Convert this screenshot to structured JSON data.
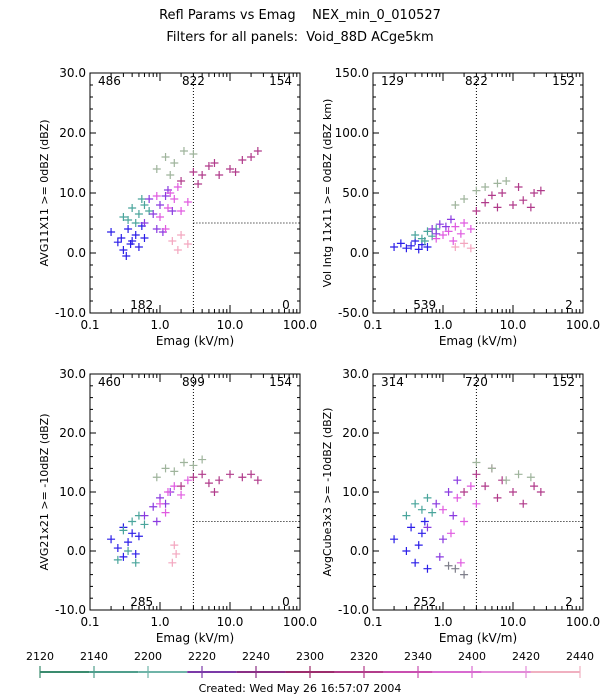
{
  "header": {
    "line1": "Refl Params vs Emag    NEX_min_0_010527",
    "line2": "Filters for all panels:  Void_88D ACge5km"
  },
  "footer": {
    "created": "Created: Wed May 26 16:57:07 2004"
  },
  "colorbar": {
    "labels": [
      "2120",
      "2140",
      "2200",
      "2220",
      "2240",
      "2300",
      "2320",
      "2340",
      "2400",
      "2420",
      "2440"
    ],
    "colors": [
      "#3a8b6e",
      "#4f9e8c",
      "#6fb4a8",
      "#7b3aa8",
      "#8a2f86",
      "#9c2c6c",
      "#b23c8a",
      "#c94fb0",
      "#d86ad0",
      "#e38bd8",
      "#f0b0c0"
    ]
  },
  "colors": {
    "blue": "#2b1ee8",
    "teal": "#4aa59c",
    "violet": "#8a3ae0",
    "purple": "#9b2c92",
    "magenta": "#e05ae0",
    "plum": "#b03a8a",
    "sage": "#9fb49c",
    "pink": "#f3a6bf",
    "gray": "#7e7e8a"
  },
  "chart_data": [
    {
      "type": "scatter",
      "xlabel": "Emag (kV/m)",
      "ylabel": "AVG11X11 >= 0dBZ (dBZ)",
      "xscale": "log",
      "xlim": [
        0.1,
        100.0
      ],
      "ylim": [
        -10.0,
        30.0
      ],
      "xticks": [
        "0.1",
        "1.0",
        "10.0",
        "100.0"
      ],
      "yticks": [
        "-10.0",
        "0.0",
        "10.0",
        "20.0",
        "30.0"
      ],
      "quadrant_x": 3.0,
      "quadrant_y": 5.0,
      "counts": {
        "top_left": "486",
        "top_mid": "822",
        "top_right": "154",
        "bottom_left": "182",
        "bottom_right": "0"
      },
      "series": [
        {
          "color": "blue",
          "points": [
            [
              0.2,
              3.5
            ],
            [
              0.25,
              1.8
            ],
            [
              0.3,
              0.5
            ],
            [
              0.28,
              2.5
            ],
            [
              0.35,
              4.0
            ],
            [
              0.4,
              2.0
            ],
            [
              0.45,
              3.0
            ],
            [
              0.5,
              1.0
            ],
            [
              0.33,
              -0.5
            ],
            [
              0.6,
              2.5
            ],
            [
              0.55,
              4.5
            ],
            [
              0.38,
              1.5
            ]
          ]
        },
        {
          "color": "teal",
          "points": [
            [
              0.3,
              6.0
            ],
            [
              0.4,
              7.5
            ],
            [
              0.5,
              6.5
            ],
            [
              0.6,
              8.0
            ],
            [
              0.45,
              5.0
            ],
            [
              0.7,
              7.0
            ],
            [
              0.35,
              5.5
            ],
            [
              0.55,
              9.0
            ]
          ]
        },
        {
          "color": "violet",
          "points": [
            [
              0.6,
              5.0
            ],
            [
              0.8,
              6.5
            ],
            [
              1.0,
              8.0
            ],
            [
              1.2,
              9.5
            ],
            [
              0.9,
              4.0
            ],
            [
              1.5,
              7.0
            ],
            [
              1.1,
              3.5
            ],
            [
              0.7,
              9.0
            ],
            [
              1.3,
              10.5
            ]
          ]
        },
        {
          "color": "magenta",
          "points": [
            [
              1.0,
              6.0
            ],
            [
              1.3,
              7.5
            ],
            [
              1.6,
              9.0
            ],
            [
              2.0,
              7.0
            ],
            [
              0.9,
              9.5
            ],
            [
              1.8,
              11.0
            ],
            [
              1.2,
              4.0
            ],
            [
              2.5,
              8.5
            ],
            [
              1.4,
              10.0
            ]
          ]
        },
        {
          "color": "plum",
          "points": [
            [
              2.0,
              12.0
            ],
            [
              3.0,
              13.5
            ],
            [
              4.0,
              13.0
            ],
            [
              5.0,
              14.5
            ],
            [
              7.0,
              13.0
            ],
            [
              10.0,
              14.0
            ],
            [
              15.0,
              15.5
            ],
            [
              20.0,
              16.0
            ],
            [
              3.5,
              11.5
            ],
            [
              6.0,
              15.0
            ],
            [
              12.0,
              13.5
            ],
            [
              25.0,
              17.0
            ]
          ]
        },
        {
          "color": "sage",
          "points": [
            [
              0.9,
              14.0
            ],
            [
              1.2,
              16.0
            ],
            [
              1.6,
              15.0
            ],
            [
              2.2,
              17.0
            ],
            [
              3.0,
              16.5
            ],
            [
              1.4,
              13.0
            ]
          ]
        },
        {
          "color": "pink",
          "points": [
            [
              1.5,
              2.0
            ],
            [
              2.0,
              3.0
            ],
            [
              1.8,
              0.5
            ],
            [
              2.5,
              1.5
            ]
          ]
        }
      ]
    },
    {
      "type": "scatter",
      "xlabel": "Emag (kV/m)",
      "ylabel": "Vol Intg 11x11 >= 0dBZ (dBZ km)",
      "xscale": "log",
      "xlim": [
        0.1,
        100.0
      ],
      "ylim": [
        -50.0,
        150.0
      ],
      "xticks": [
        "0.1",
        "1.0",
        "10.0",
        "100.0"
      ],
      "yticks": [
        "-50.0",
        "0.0",
        "50.0",
        "100.0",
        "150.0"
      ],
      "quadrant_x": 3.0,
      "quadrant_y": 25.0,
      "counts": {
        "top_left": "129",
        "top_mid": "822",
        "top_right": "152",
        "bottom_left": "539",
        "bottom_right": "2"
      },
      "series": [
        {
          "color": "blue",
          "points": [
            [
              0.2,
              5.0
            ],
            [
              0.25,
              8.0
            ],
            [
              0.3,
              4.0
            ],
            [
              0.35,
              6.0
            ],
            [
              0.4,
              10.0
            ],
            [
              0.45,
              3.0
            ],
            [
              0.5,
              7.0
            ],
            [
              0.6,
              5.0
            ]
          ]
        },
        {
          "color": "teal",
          "points": [
            [
              0.4,
              15.0
            ],
            [
              0.5,
              12.0
            ],
            [
              0.6,
              18.0
            ],
            [
              0.7,
              14.0
            ],
            [
              0.8,
              20.0
            ],
            [
              0.55,
              10.0
            ]
          ]
        },
        {
          "color": "violet",
          "points": [
            [
              0.7,
              20.0
            ],
            [
              0.9,
              24.0
            ],
            [
              1.1,
              22.0
            ],
            [
              1.3,
              28.0
            ],
            [
              0.8,
              16.0
            ]
          ]
        },
        {
          "color": "magenta",
          "points": [
            [
              0.8,
              12.0
            ],
            [
              1.0,
              15.0
            ],
            [
              1.2,
              18.0
            ],
            [
              1.5,
              22.0
            ],
            [
              1.8,
              16.0
            ],
            [
              2.0,
              25.0
            ],
            [
              1.4,
              10.0
            ],
            [
              2.5,
              20.0
            ]
          ]
        },
        {
          "color": "plum",
          "points": [
            [
              3.0,
              35.0
            ],
            [
              4.0,
              42.0
            ],
            [
              5.0,
              48.0
            ],
            [
              7.0,
              50.0
            ],
            [
              10.0,
              40.0
            ],
            [
              14.0,
              44.0
            ],
            [
              20.0,
              50.0
            ],
            [
              25.0,
              52.0
            ],
            [
              6.0,
              38.0
            ],
            [
              12.0,
              55.0
            ],
            [
              18.0,
              38.0
            ]
          ]
        },
        {
          "color": "sage",
          "points": [
            [
              2.0,
              45.0
            ],
            [
              3.0,
              52.0
            ],
            [
              4.0,
              55.0
            ],
            [
              6.0,
              58.0
            ],
            [
              8.0,
              60.0
            ],
            [
              1.5,
              40.0
            ]
          ]
        },
        {
          "color": "pink",
          "points": [
            [
              1.5,
              5.0
            ],
            [
              2.0,
              8.0
            ],
            [
              2.5,
              4.0
            ]
          ]
        }
      ]
    },
    {
      "type": "scatter",
      "xlabel": "Emag (kV/m)",
      "ylabel": "AVG21x21 >= -10dBZ (dBZ)",
      "xscale": "log",
      "xlim": [
        0.1,
        100.0
      ],
      "ylim": [
        -10.0,
        30.0
      ],
      "xticks": [
        "0.1",
        "1.0",
        "10.0",
        "100.0"
      ],
      "yticks": [
        "-10.0",
        "0.0",
        "10.0",
        "20.0",
        "30.0"
      ],
      "quadrant_x": 3.0,
      "quadrant_y": 5.0,
      "counts": {
        "top_left": "460",
        "top_mid": "899",
        "top_right": "154",
        "bottom_left": "285",
        "bottom_right": "0"
      },
      "series": [
        {
          "color": "blue",
          "points": [
            [
              0.2,
              2.0
            ],
            [
              0.25,
              0.5
            ],
            [
              0.3,
              -1.0
            ],
            [
              0.35,
              1.5
            ],
            [
              0.4,
              3.0
            ],
            [
              0.45,
              -0.5
            ],
            [
              0.5,
              2.5
            ],
            [
              0.3,
              4.0
            ]
          ]
        },
        {
          "color": "teal",
          "points": [
            [
              0.25,
              -1.5
            ],
            [
              0.3,
              3.5
            ],
            [
              0.35,
              0.0
            ],
            [
              0.4,
              5.0
            ],
            [
              0.5,
              6.0
            ],
            [
              0.6,
              4.5
            ],
            [
              0.45,
              -2.0
            ]
          ]
        },
        {
          "color": "violet",
          "points": [
            [
              0.6,
              6.0
            ],
            [
              0.8,
              7.5
            ],
            [
              1.0,
              9.0
            ],
            [
              1.2,
              8.0
            ],
            [
              0.9,
              5.0
            ],
            [
              1.4,
              10.0
            ]
          ]
        },
        {
          "color": "magenta",
          "points": [
            [
              1.0,
              8.0
            ],
            [
              1.3,
              10.0
            ],
            [
              1.6,
              11.0
            ],
            [
              2.0,
              9.5
            ],
            [
              2.5,
              12.0
            ],
            [
              1.2,
              6.5
            ]
          ]
        },
        {
          "color": "plum",
          "points": [
            [
              2.0,
              11.0
            ],
            [
              3.0,
              12.5
            ],
            [
              4.0,
              13.0
            ],
            [
              5.0,
              11.5
            ],
            [
              7.0,
              12.0
            ],
            [
              10.0,
              13.0
            ],
            [
              15.0,
              12.5
            ],
            [
              20.0,
              13.0
            ],
            [
              25.0,
              12.0
            ],
            [
              6.0,
              10.0
            ]
          ]
        },
        {
          "color": "sage",
          "points": [
            [
              0.9,
              12.5
            ],
            [
              1.2,
              14.0
            ],
            [
              1.6,
              13.5
            ],
            [
              2.2,
              15.0
            ],
            [
              3.0,
              14.5
            ],
            [
              4.0,
              15.5
            ]
          ]
        },
        {
          "color": "pink",
          "points": [
            [
              1.5,
              -2.0
            ],
            [
              1.7,
              -0.5
            ],
            [
              1.6,
              1.0
            ]
          ]
        }
      ]
    },
    {
      "type": "scatter",
      "xlabel": "Emag (kV/m)",
      "ylabel": "AvgCube3x3 >= -10dBZ (dBZ)",
      "xscale": "log",
      "xlim": [
        0.1,
        100.0
      ],
      "ylim": [
        -10.0,
        30.0
      ],
      "xticks": [
        "0.1",
        "1.0",
        "10.0",
        "100.0"
      ],
      "yticks": [
        "-10.0",
        "0.0",
        "10.0",
        "20.0",
        "30.0"
      ],
      "quadrant_x": 3.0,
      "quadrant_y": 5.0,
      "counts": {
        "top_left": "314",
        "top_mid": "720",
        "top_right": "152",
        "bottom_left": "252",
        "bottom_right": "2"
      },
      "series": [
        {
          "color": "blue",
          "points": [
            [
              0.2,
              2.0
            ],
            [
              0.3,
              0.0
            ],
            [
              0.35,
              4.0
            ],
            [
              0.4,
              -2.0
            ],
            [
              0.45,
              1.0
            ],
            [
              0.5,
              3.0
            ],
            [
              0.6,
              -3.0
            ],
            [
              0.55,
              5.0
            ]
          ]
        },
        {
          "color": "teal",
          "points": [
            [
              0.3,
              6.0
            ],
            [
              0.4,
              8.0
            ],
            [
              0.5,
              7.0
            ],
            [
              0.6,
              9.0
            ],
            [
              0.7,
              6.5
            ]
          ]
        },
        {
          "color": "violet",
          "points": [
            [
              0.6,
              4.0
            ],
            [
              0.8,
              8.0
            ],
            [
              1.0,
              2.0
            ],
            [
              1.2,
              10.0
            ],
            [
              1.4,
              6.0
            ],
            [
              0.9,
              -1.0
            ],
            [
              1.6,
              12.0
            ]
          ]
        },
        {
          "color": "magenta",
          "points": [
            [
              1.0,
              7.0
            ],
            [
              1.3,
              3.0
            ],
            [
              1.6,
              9.0
            ],
            [
              2.0,
              5.0
            ],
            [
              2.5,
              11.0
            ],
            [
              1.8,
              -2.0
            ],
            [
              3.0,
              8.0
            ]
          ]
        },
        {
          "color": "plum",
          "points": [
            [
              2.0,
              10.0
            ],
            [
              3.0,
              13.0
            ],
            [
              4.0,
              11.0
            ],
            [
              5.0,
              14.0
            ],
            [
              7.0,
              12.0
            ],
            [
              10.0,
              10.0
            ],
            [
              14.0,
              8.0
            ],
            [
              20.0,
              11.0
            ],
            [
              25.0,
              10.0
            ],
            [
              6.0,
              9.0
            ]
          ]
        },
        {
          "color": "sage",
          "points": [
            [
              3.0,
              15.0
            ],
            [
              5.0,
              14.0
            ],
            [
              8.0,
              12.0
            ],
            [
              12.0,
              13.0
            ],
            [
              18.0,
              12.5
            ]
          ]
        },
        {
          "color": "gray",
          "points": [
            [
              1.5,
              -3.0
            ],
            [
              2.0,
              -4.0
            ],
            [
              1.2,
              -2.5
            ]
          ]
        }
      ]
    }
  ]
}
